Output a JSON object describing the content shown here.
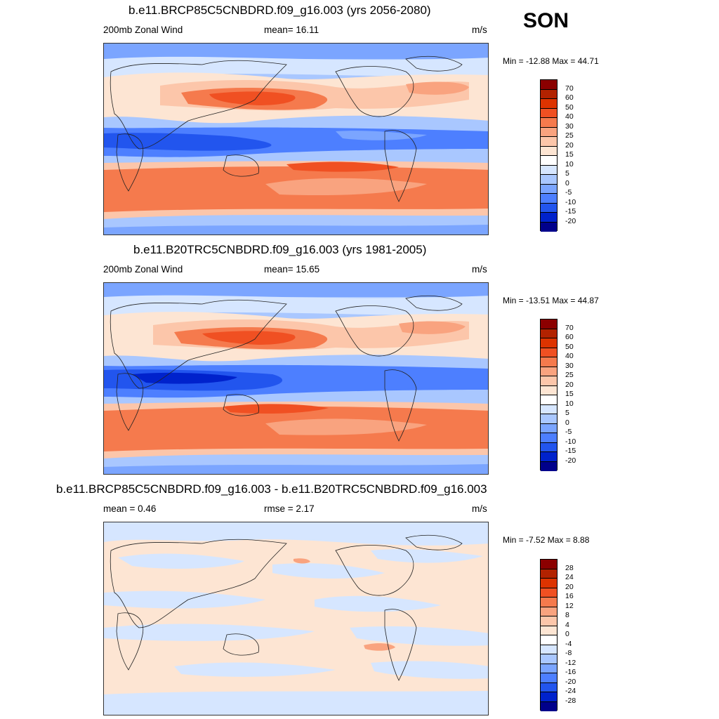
{
  "season_label": "SON",
  "panels": [
    {
      "title": "b.e11.BRCP85C5CNBDRD.f09_g16.003 (yrs 2056-2080)",
      "left_label": "200mb Zonal Wind",
      "center_label": "mean=  16.11",
      "units": "m/s",
      "minmax": "Min = -12.88 Max =  44.71",
      "colorbar": {
        "labels": [
          "70",
          "60",
          "50",
          "40",
          "30",
          "25",
          "20",
          "15",
          "10",
          "5",
          "0",
          "-5",
          "-10",
          "-15",
          "-20"
        ],
        "colors": [
          "#8b0000",
          "#b22200",
          "#dd3300",
          "#f05022",
          "#f57a4d",
          "#f9a37f",
          "#fcc6aa",
          "#fde5d3",
          "#ffffff",
          "#d6e6ff",
          "#a9c7ff",
          "#7ba5ff",
          "#4d7fff",
          "#2255ee",
          "#0022cc",
          "#00008b"
        ]
      }
    },
    {
      "title": "b.e11.B20TRC5CNBDRD.f09_g16.003 (yrs 1981-2005)",
      "left_label": "200mb Zonal Wind",
      "center_label": "mean=  15.65",
      "units": "m/s",
      "minmax": "Min = -13.51 Max =  44.87",
      "colorbar": {
        "labels": [
          "70",
          "60",
          "50",
          "40",
          "30",
          "25",
          "20",
          "15",
          "10",
          "5",
          "0",
          "-5",
          "-10",
          "-15",
          "-20"
        ],
        "colors": [
          "#8b0000",
          "#b22200",
          "#dd3300",
          "#f05022",
          "#f57a4d",
          "#f9a37f",
          "#fcc6aa",
          "#fde5d3",
          "#ffffff",
          "#d6e6ff",
          "#a9c7ff",
          "#7ba5ff",
          "#4d7fff",
          "#2255ee",
          "#0022cc",
          "#00008b"
        ]
      }
    },
    {
      "title": "b.e11.BRCP85C5CNBDRD.f09_g16.003 - b.e11.B20TRC5CNBDRD.f09_g16.003",
      "left_label": "mean =   0.46",
      "center_label": "rmse =   2.17",
      "units": "m/s",
      "minmax": "Min =  -7.52 Max =   8.88",
      "colorbar": {
        "labels": [
          "28",
          "24",
          "20",
          "16",
          "12",
          "8",
          "4",
          "0",
          "-4",
          "-8",
          "-12",
          "-16",
          "-20",
          "-24",
          "-28"
        ],
        "colors": [
          "#8b0000",
          "#b22200",
          "#dd3300",
          "#f05022",
          "#f57a4d",
          "#f9a37f",
          "#fcc6aa",
          "#fde5d3",
          "#ffffff",
          "#d6e6ff",
          "#a9c7ff",
          "#7ba5ff",
          "#4d7fff",
          "#2255ee",
          "#0022cc",
          "#00008b"
        ]
      }
    }
  ]
}
